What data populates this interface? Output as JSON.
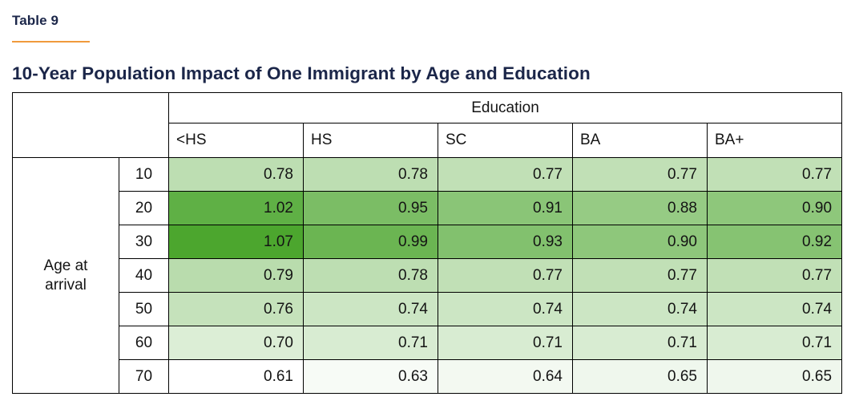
{
  "page": {
    "kicker": "Table 9",
    "title": "10-Year Population Impact of One Immigrant by Age and Education",
    "accent_color": "#F09A3C",
    "heading_color": "#1B2649"
  },
  "chart_data": {
    "type": "heatmap",
    "title": "10-Year Population Impact of One Immigrant by Age and Education",
    "column_group_label": "Education",
    "row_group_label": "Age at\narrival",
    "columns": [
      "<HS",
      "HS",
      "SC",
      "BA",
      "BA+"
    ],
    "rows": [
      "10",
      "20",
      "30",
      "40",
      "50",
      "60",
      "70"
    ],
    "values": [
      [
        0.78,
        0.78,
        0.77,
        0.77,
        0.77
      ],
      [
        1.02,
        0.95,
        0.91,
        0.88,
        0.9
      ],
      [
        1.07,
        0.99,
        0.93,
        0.9,
        0.92
      ],
      [
        0.79,
        0.78,
        0.77,
        0.77,
        0.77
      ],
      [
        0.76,
        0.74,
        0.74,
        0.74,
        0.74
      ],
      [
        0.7,
        0.71,
        0.71,
        0.71,
        0.71
      ],
      [
        0.61,
        0.63,
        0.64,
        0.65,
        0.65
      ]
    ],
    "value_format": "0.00",
    "color_scale": {
      "min_value": 0.61,
      "max_value": 1.07,
      "min_color": "#FFFFFF",
      "max_color": "#4CA62E"
    },
    "legend": "none",
    "grid": "all-borders"
  }
}
